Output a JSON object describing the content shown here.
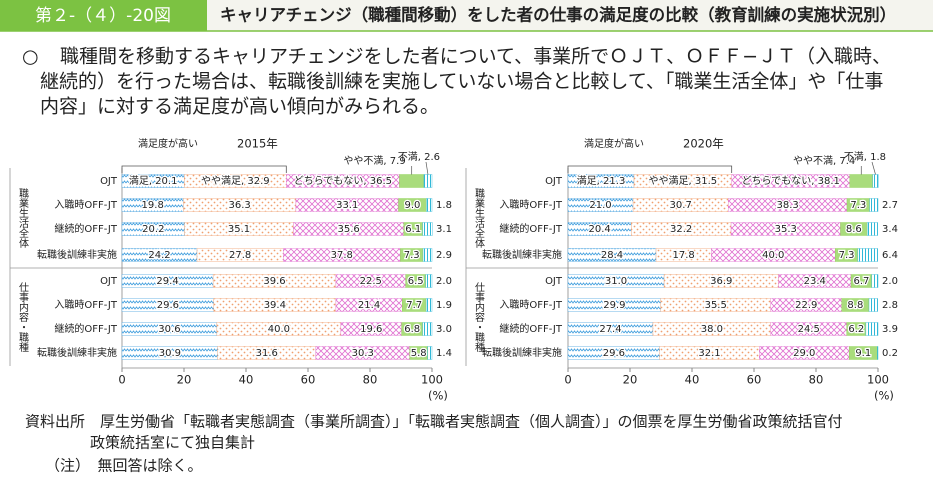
{
  "header": {
    "figure_number": "第２-（４）-20図",
    "title": "キャリアチェンジ（職種間移動）をした者の仕事の満足度の比較（教育訓練の実施状況別）"
  },
  "summary": {
    "bullet": "○",
    "lines": [
      "職種間を移動するキャリアチェンジをした者について、事業所でＯＪＴ、ＯＦＦ−ＪＴ（入職時、",
      "継続的）を行った場合は、転職後訓練を実施していない場合と比較して、「職業生活全体」や「仕事",
      "内容」に対する満足度が高い傾向がみられる。"
    ]
  },
  "chart_data": [
    {
      "type": "bar",
      "orientation": "horizontal",
      "stacked": true,
      "title": "2015年",
      "annotation": "満足度が高い",
      "groups": [
        "職業生活全体",
        "仕事内容・職種"
      ],
      "categories": [
        "OJT",
        "入職時OFF-JT",
        "継続的OFF-JT",
        "転職後訓練非実施",
        "OJT",
        "入職時OFF-JT",
        "継続的OFF-JT",
        "転職後訓練非実施"
      ],
      "series": [
        {
          "name": "満足",
          "color": "#4aa3df",
          "values": [
            20.1,
            19.8,
            20.2,
            24.2,
            29.4,
            29.6,
            30.6,
            30.9
          ],
          "value_labels": [
            "満足, 20.1",
            "19.8",
            "20.2",
            "24.2",
            "29.4",
            "29.6",
            "30.6",
            "30.9"
          ]
        },
        {
          "name": "やや満足",
          "color": "#f0a070",
          "values": [
            32.9,
            36.3,
            35.1,
            27.8,
            39.6,
            39.4,
            40.0,
            31.6
          ],
          "value_labels": [
            "やや満足, 32.9",
            "36.3",
            "35.1",
            "27.8",
            "39.6",
            "39.4",
            "40.0",
            "31.6"
          ]
        },
        {
          "name": "どちらでもない",
          "color": "#e070d0",
          "values": [
            36.5,
            33.1,
            35.6,
            37.8,
            22.5,
            21.4,
            19.6,
            30.3
          ],
          "value_labels": [
            "どちらでもない, 36.5",
            "33.1",
            "35.6",
            "37.8",
            "22.5",
            "21.4",
            "19.6",
            "30.3"
          ]
        },
        {
          "name": "やや不満",
          "color": "#8cd050",
          "values": [
            7.9,
            9.0,
            6.1,
            7.3,
            6.5,
            7.7,
            6.8,
            5.8
          ],
          "value_labels": [
            "やや不満, 7.9",
            "9.0",
            "6.1",
            "7.3",
            "6.5",
            "7.7",
            "6.8",
            "5.8"
          ]
        },
        {
          "name": "不満",
          "color": "#30b8d8",
          "values": [
            2.6,
            1.8,
            3.1,
            2.9,
            2.0,
            1.9,
            3.0,
            1.4
          ],
          "value_labels": [
            "不満, 2.6",
            "1.8",
            "3.1",
            "2.9",
            "2.0",
            "1.9",
            "3.0",
            "1.4"
          ]
        }
      ],
      "xlim": [
        0,
        100
      ],
      "xticks": [
        0,
        20,
        40,
        60,
        80,
        100
      ],
      "x_unit": "(%)"
    },
    {
      "type": "bar",
      "orientation": "horizontal",
      "stacked": true,
      "title": "2020年",
      "annotation": "満足度が高い",
      "groups": [
        "職業生活全体",
        "仕事内容・職種"
      ],
      "categories": [
        "OJT",
        "入職時OFF-JT",
        "継続的OFF-JT",
        "転職後訓練非実施",
        "OJT",
        "入職時OFF-JT",
        "継続的OFF-JT",
        "転職後訓練非実施"
      ],
      "series": [
        {
          "name": "満足",
          "color": "#4aa3df",
          "values": [
            21.3,
            21.0,
            20.4,
            28.4,
            31.0,
            29.9,
            27.4,
            29.6
          ],
          "value_labels": [
            "満足, 21.3",
            "21.0",
            "20.4",
            "28.4",
            "31.0",
            "29.9",
            "27.4",
            "29.6"
          ]
        },
        {
          "name": "やや満足",
          "color": "#f0a070",
          "values": [
            31.5,
            30.7,
            32.2,
            17.8,
            36.9,
            35.5,
            38.0,
            32.1
          ],
          "value_labels": [
            "やや満足, 31.5",
            "30.7",
            "32.2",
            "17.8",
            "36.9",
            "35.5",
            "38.0",
            "32.1"
          ]
        },
        {
          "name": "どちらでもない",
          "color": "#e070d0",
          "values": [
            38.1,
            38.3,
            35.3,
            40.0,
            23.4,
            22.9,
            24.5,
            29.0
          ],
          "value_labels": [
            "どちらでもない, 38.1",
            "38.3",
            "35.3",
            "40.0",
            "23.4",
            "22.9",
            "24.5",
            "29.0"
          ]
        },
        {
          "name": "やや不満",
          "color": "#8cd050",
          "values": [
            7.4,
            7.3,
            8.6,
            7.3,
            6.7,
            8.8,
            6.2,
            9.1
          ],
          "value_labels": [
            "やや不満, 7.4",
            "7.3",
            "8.6",
            "7.3",
            "6.7",
            "8.8",
            "6.2",
            "9.1"
          ]
        },
        {
          "name": "不満",
          "color": "#30b8d8",
          "values": [
            1.8,
            2.7,
            3.4,
            6.4,
            2.0,
            2.8,
            3.9,
            0.2
          ],
          "value_labels": [
            "不満, 1.8",
            "2.7",
            "3.4",
            "6.4",
            "2.0",
            "2.8",
            "3.9",
            "0.2"
          ]
        }
      ],
      "xlim": [
        0,
        100
      ],
      "xticks": [
        0,
        20,
        40,
        60,
        80,
        100
      ],
      "x_unit": "(%)"
    }
  ],
  "source": {
    "label": "資料出所",
    "lines": [
      "厚生労働省「転職者実態調査（事業所調査）」「転職者実態調査（個人調査）」の個票を厚生労働省政策統括官付",
      "政策統括室にて独自集計"
    ]
  },
  "note": "（注）　無回答は除く。"
}
